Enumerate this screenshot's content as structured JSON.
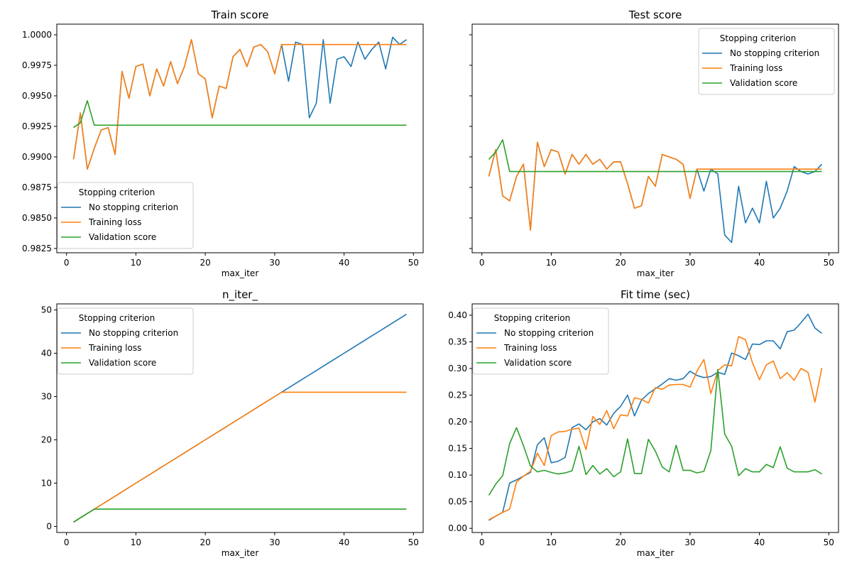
{
  "chart_data": [
    {
      "type": "line",
      "title": "Train score",
      "xlabel": "max_iter",
      "ylabel": "",
      "xlim": [
        -1.4,
        51.4
      ],
      "ylim": [
        0.98215,
        1.00087
      ],
      "xticks": [
        0,
        10,
        20,
        30,
        40,
        50
      ],
      "yticks": [
        0.9825,
        0.985,
        0.9875,
        0.99,
        0.9925,
        0.995,
        0.9975,
        1.0
      ],
      "ytick_labels": [
        "0.9825",
        "0.9850",
        "0.9875",
        "0.9900",
        "0.9925",
        "0.9950",
        "0.9975",
        "1.0000"
      ],
      "show_yticklabels": true,
      "legend": {
        "title": "Stopping criterion",
        "placement": "lower-left"
      },
      "x": [
        1,
        2,
        3,
        4,
        5,
        6,
        7,
        8,
        9,
        10,
        11,
        12,
        13,
        14,
        15,
        16,
        17,
        18,
        19,
        20,
        21,
        22,
        23,
        24,
        25,
        26,
        27,
        28,
        29,
        30,
        31,
        32,
        33,
        34,
        35,
        36,
        37,
        38,
        39,
        40,
        41,
        42,
        43,
        44,
        45,
        46,
        47,
        48,
        49
      ],
      "series": [
        {
          "name": "No stopping criterion",
          "color": "#1f77b4",
          "values": [
            0.9898,
            0.9936,
            0.989,
            0.9907,
            0.9922,
            0.9924,
            0.9902,
            0.997,
            0.9948,
            0.9974,
            0.9976,
            0.995,
            0.9972,
            0.9958,
            0.9978,
            0.996,
            0.9974,
            0.9996,
            0.9968,
            0.9964,
            0.9932,
            0.9958,
            0.9956,
            0.9982,
            0.9988,
            0.9974,
            0.999,
            0.9992,
            0.9986,
            0.9968,
            0.9992,
            0.9962,
            0.9994,
            0.9992,
            0.9932,
            0.9944,
            0.9996,
            0.9944,
            0.998,
            0.9982,
            0.9974,
            0.9994,
            0.998,
            0.9988,
            0.9994,
            0.9972,
            0.9998,
            0.9992,
            0.9996
          ]
        },
        {
          "name": "Training loss",
          "color": "#ff7f0e",
          "values": [
            0.9898,
            0.9936,
            0.989,
            0.9907,
            0.9922,
            0.9924,
            0.9902,
            0.997,
            0.9948,
            0.9974,
            0.9976,
            0.995,
            0.9972,
            0.9958,
            0.9978,
            0.996,
            0.9974,
            0.9996,
            0.9968,
            0.9964,
            0.9932,
            0.9958,
            0.9956,
            0.9982,
            0.9988,
            0.9974,
            0.999,
            0.9992,
            0.9986,
            0.9968,
            0.9992,
            0.9992,
            0.9992,
            0.9992,
            0.9992,
            0.9992,
            0.9992,
            0.9992,
            0.9992,
            0.9992,
            0.9992,
            0.9992,
            0.9992,
            0.9992,
            0.9992,
            0.9992,
            0.9992,
            0.9992,
            0.9992
          ]
        },
        {
          "name": "Validation score",
          "color": "#2ca02c",
          "values": [
            0.9924,
            0.9928,
            0.9946,
            0.9926,
            0.9926,
            0.9926,
            0.9926,
            0.9926,
            0.9926,
            0.9926,
            0.9926,
            0.9926,
            0.9926,
            0.9926,
            0.9926,
            0.9926,
            0.9926,
            0.9926,
            0.9926,
            0.9926,
            0.9926,
            0.9926,
            0.9926,
            0.9926,
            0.9926,
            0.9926,
            0.9926,
            0.9926,
            0.9926,
            0.9926,
            0.9926,
            0.9926,
            0.9926,
            0.9926,
            0.9926,
            0.9926,
            0.9926,
            0.9926,
            0.9926,
            0.9926,
            0.9926,
            0.9926,
            0.9926,
            0.9926,
            0.9926,
            0.9926,
            0.9926,
            0.9926,
            0.9926
          ]
        }
      ]
    },
    {
      "type": "line",
      "title": "Test score",
      "xlabel": "max_iter",
      "ylabel": "",
      "xlim": [
        -1.4,
        51.4
      ],
      "ylim": [
        0.98215,
        1.00087
      ],
      "xticks": [
        0,
        10,
        20,
        30,
        40,
        50
      ],
      "yticks": [
        0.9825,
        0.985,
        0.9875,
        0.99,
        0.9925,
        0.995,
        0.9975,
        1.0
      ],
      "ytick_labels": [],
      "show_yticklabels": false,
      "legend": {
        "title": "Stopping criterion",
        "placement": "upper-right"
      },
      "x": [
        1,
        2,
        3,
        4,
        5,
        6,
        7,
        8,
        9,
        10,
        11,
        12,
        13,
        14,
        15,
        16,
        17,
        18,
        19,
        20,
        21,
        22,
        23,
        24,
        25,
        26,
        27,
        28,
        29,
        30,
        31,
        32,
        33,
        34,
        35,
        36,
        37,
        38,
        39,
        40,
        41,
        42,
        43,
        44,
        45,
        46,
        47,
        48,
        49
      ],
      "series": [
        {
          "name": "No stopping criterion",
          "color": "#1f77b4",
          "values": [
            0.9884,
            0.9906,
            0.9868,
            0.9864,
            0.9884,
            0.9894,
            0.984,
            0.9912,
            0.9892,
            0.9906,
            0.9904,
            0.9886,
            0.9902,
            0.9894,
            0.9902,
            0.9894,
            0.9898,
            0.989,
            0.9896,
            0.9896,
            0.9878,
            0.9858,
            0.986,
            0.9884,
            0.9876,
            0.9902,
            0.99,
            0.9898,
            0.9894,
            0.9866,
            0.989,
            0.9872,
            0.989,
            0.9886,
            0.9836,
            0.983,
            0.9876,
            0.9846,
            0.9858,
            0.9846,
            0.988,
            0.985,
            0.9858,
            0.9872,
            0.9892,
            0.9888,
            0.9886,
            0.9888,
            0.9894
          ]
        },
        {
          "name": "Training loss",
          "color": "#ff7f0e",
          "values": [
            0.9884,
            0.9906,
            0.9868,
            0.9864,
            0.9884,
            0.9894,
            0.984,
            0.9912,
            0.9892,
            0.9906,
            0.9904,
            0.9886,
            0.9902,
            0.9894,
            0.9902,
            0.9894,
            0.9898,
            0.989,
            0.9896,
            0.9896,
            0.9878,
            0.9858,
            0.986,
            0.9884,
            0.9876,
            0.9902,
            0.99,
            0.9898,
            0.9894,
            0.9866,
            0.989,
            0.989,
            0.989,
            0.989,
            0.989,
            0.989,
            0.989,
            0.989,
            0.989,
            0.989,
            0.989,
            0.989,
            0.989,
            0.989,
            0.989,
            0.989,
            0.989,
            0.989,
            0.989
          ]
        },
        {
          "name": "Validation score",
          "color": "#2ca02c",
          "values": [
            0.9898,
            0.9904,
            0.9914,
            0.9888,
            0.9888,
            0.9888,
            0.9888,
            0.9888,
            0.9888,
            0.9888,
            0.9888,
            0.9888,
            0.9888,
            0.9888,
            0.9888,
            0.9888,
            0.9888,
            0.9888,
            0.9888,
            0.9888,
            0.9888,
            0.9888,
            0.9888,
            0.9888,
            0.9888,
            0.9888,
            0.9888,
            0.9888,
            0.9888,
            0.9888,
            0.9888,
            0.9888,
            0.9888,
            0.9888,
            0.9888,
            0.9888,
            0.9888,
            0.9888,
            0.9888,
            0.9888,
            0.9888,
            0.9888,
            0.9888,
            0.9888,
            0.9888,
            0.9888,
            0.9888,
            0.9888,
            0.9888
          ]
        }
      ]
    },
    {
      "type": "line",
      "title": "n_iter_",
      "xlabel": "max_iter",
      "ylabel": "",
      "xlim": [
        -1.4,
        51.4
      ],
      "ylim": [
        -1.4,
        51.4
      ],
      "xticks": [
        0,
        10,
        20,
        30,
        40,
        50
      ],
      "yticks": [
        0,
        10,
        20,
        30,
        40,
        50
      ],
      "ytick_labels": [
        "0",
        "10",
        "20",
        "30",
        "40",
        "50"
      ],
      "show_yticklabels": true,
      "legend": {
        "title": "Stopping criterion",
        "placement": "upper-left"
      },
      "x": [
        1,
        2,
        3,
        4,
        5,
        6,
        7,
        8,
        9,
        10,
        11,
        12,
        13,
        14,
        15,
        16,
        17,
        18,
        19,
        20,
        21,
        22,
        23,
        24,
        25,
        26,
        27,
        28,
        29,
        30,
        31,
        32,
        33,
        34,
        35,
        36,
        37,
        38,
        39,
        40,
        41,
        42,
        43,
        44,
        45,
        46,
        47,
        48,
        49
      ],
      "series": [
        {
          "name": "No stopping criterion",
          "color": "#1f77b4",
          "values": [
            1,
            2,
            3,
            4,
            5,
            6,
            7,
            8,
            9,
            10,
            11,
            12,
            13,
            14,
            15,
            16,
            17,
            18,
            19,
            20,
            21,
            22,
            23,
            24,
            25,
            26,
            27,
            28,
            29,
            30,
            31,
            32,
            33,
            34,
            35,
            36,
            37,
            38,
            39,
            40,
            41,
            42,
            43,
            44,
            45,
            46,
            47,
            48,
            49
          ]
        },
        {
          "name": "Training loss",
          "color": "#ff7f0e",
          "values": [
            1,
            2,
            3,
            4,
            5,
            6,
            7,
            8,
            9,
            10,
            11,
            12,
            13,
            14,
            15,
            16,
            17,
            18,
            19,
            20,
            21,
            22,
            23,
            24,
            25,
            26,
            27,
            28,
            29,
            30,
            31,
            31,
            31,
            31,
            31,
            31,
            31,
            31,
            31,
            31,
            31,
            31,
            31,
            31,
            31,
            31,
            31,
            31,
            31
          ]
        },
        {
          "name": "Validation score",
          "color": "#2ca02c",
          "values": [
            1,
            2,
            3,
            4,
            4,
            4,
            4,
            4,
            4,
            4,
            4,
            4,
            4,
            4,
            4,
            4,
            4,
            4,
            4,
            4,
            4,
            4,
            4,
            4,
            4,
            4,
            4,
            4,
            4,
            4,
            4,
            4,
            4,
            4,
            4,
            4,
            4,
            4,
            4,
            4,
            4,
            4,
            4,
            4,
            4,
            4,
            4,
            4,
            4
          ]
        }
      ]
    },
    {
      "type": "line",
      "title": "Fit time (sec)",
      "xlabel": "max_iter",
      "ylabel": "",
      "xlim": [
        -1.4,
        51.4
      ],
      "ylim": [
        -0.0078,
        0.4213
      ],
      "xticks": [
        0,
        10,
        20,
        30,
        40,
        50
      ],
      "yticks": [
        0.0,
        0.05,
        0.1,
        0.15,
        0.2,
        0.25,
        0.3,
        0.35,
        0.4
      ],
      "ytick_labels": [
        "0.00",
        "0.05",
        "0.10",
        "0.15",
        "0.20",
        "0.25",
        "0.30",
        "0.35",
        "0.40"
      ],
      "show_yticklabels": true,
      "legend": {
        "title": "Stopping criterion",
        "placement": "upper-left"
      },
      "x": [
        1,
        2,
        3,
        4,
        5,
        6,
        7,
        8,
        9,
        10,
        11,
        12,
        13,
        14,
        15,
        16,
        17,
        18,
        19,
        20,
        21,
        22,
        23,
        24,
        25,
        26,
        27,
        28,
        29,
        30,
        31,
        32,
        33,
        34,
        35,
        36,
        37,
        38,
        39,
        40,
        41,
        42,
        43,
        44,
        45,
        46,
        47,
        48,
        49
      ],
      "series": [
        {
          "name": "No stopping criterion",
          "color": "#1f77b4",
          "values": [
            0.015,
            0.023,
            0.03,
            0.085,
            0.091,
            0.098,
            0.105,
            0.157,
            0.17,
            0.123,
            0.126,
            0.133,
            0.189,
            0.196,
            0.185,
            0.2,
            0.206,
            0.194,
            0.216,
            0.229,
            0.25,
            0.211,
            0.241,
            0.253,
            0.262,
            0.271,
            0.281,
            0.278,
            0.281,
            0.295,
            0.287,
            0.283,
            0.285,
            0.293,
            0.289,
            0.329,
            0.324,
            0.317,
            0.346,
            0.345,
            0.352,
            0.352,
            0.337,
            0.369,
            0.372,
            0.386,
            0.402,
            0.376,
            0.366
          ]
        },
        {
          "name": "Training loss",
          "color": "#ff7f0e",
          "values": [
            0.016,
            0.023,
            0.03,
            0.036,
            0.087,
            0.098,
            0.107,
            0.141,
            0.118,
            0.174,
            0.181,
            0.182,
            0.186,
            0.188,
            0.148,
            0.21,
            0.195,
            0.221,
            0.187,
            0.213,
            0.211,
            0.245,
            0.242,
            0.235,
            0.264,
            0.261,
            0.269,
            0.27,
            0.27,
            0.265,
            0.295,
            0.317,
            0.253,
            0.296,
            0.307,
            0.305,
            0.36,
            0.354,
            0.311,
            0.279,
            0.307,
            0.314,
            0.281,
            0.292,
            0.278,
            0.3,
            0.293,
            0.237,
            0.301
          ]
        },
        {
          "name": "Validation score",
          "color": "#2ca02c",
          "values": [
            0.062,
            0.083,
            0.099,
            0.159,
            0.189,
            0.155,
            0.117,
            0.106,
            0.109,
            0.105,
            0.102,
            0.104,
            0.108,
            0.154,
            0.101,
            0.118,
            0.102,
            0.112,
            0.097,
            0.106,
            0.168,
            0.103,
            0.103,
            0.167,
            0.145,
            0.115,
            0.106,
            0.156,
            0.109,
            0.109,
            0.104,
            0.107,
            0.146,
            0.298,
            0.177,
            0.154,
            0.099,
            0.112,
            0.106,
            0.106,
            0.12,
            0.114,
            0.153,
            0.113,
            0.106,
            0.106,
            0.106,
            0.11,
            0.102
          ]
        }
      ]
    }
  ]
}
